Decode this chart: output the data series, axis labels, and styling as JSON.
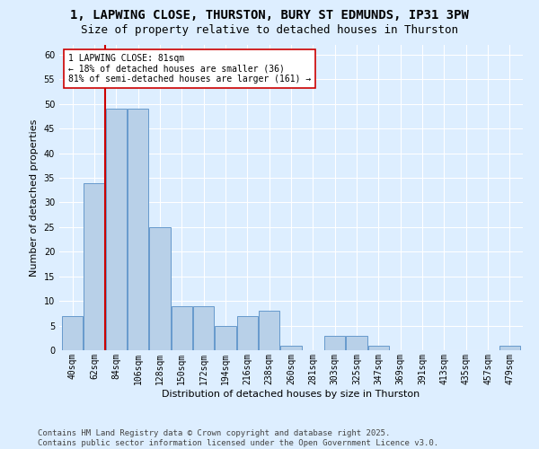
{
  "title_line1": "1, LAPWING CLOSE, THURSTON, BURY ST EDMUNDS, IP31 3PW",
  "title_line2": "Size of property relative to detached houses in Thurston",
  "xlabel": "Distribution of detached houses by size in Thurston",
  "ylabel": "Number of detached properties",
  "categories": [
    "40sqm",
    "62sqm",
    "84sqm",
    "106sqm",
    "128sqm",
    "150sqm",
    "172sqm",
    "194sqm",
    "216sqm",
    "238sqm",
    "260sqm",
    "281sqm",
    "303sqm",
    "325sqm",
    "347sqm",
    "369sqm",
    "391sqm",
    "413sqm",
    "435sqm",
    "457sqm",
    "479sqm"
  ],
  "values": [
    7,
    34,
    49,
    49,
    25,
    9,
    9,
    5,
    7,
    8,
    1,
    0,
    3,
    3,
    1,
    0,
    0,
    0,
    0,
    0,
    1
  ],
  "bar_color": "#b8d0e8",
  "bar_edge_color": "#6699cc",
  "vline_color": "#cc0000",
  "vline_x": 1.5,
  "annotation_text": "1 LAPWING CLOSE: 81sqm\n← 18% of detached houses are smaller (36)\n81% of semi-detached houses are larger (161) →",
  "annotation_box_color": "white",
  "annotation_box_edge_color": "#cc0000",
  "ylim": [
    0,
    62
  ],
  "yticks": [
    0,
    5,
    10,
    15,
    20,
    25,
    30,
    35,
    40,
    45,
    50,
    55,
    60
  ],
  "background_color": "#ddeeff",
  "plot_bg_color": "#ddeeff",
  "grid_color": "white",
  "footer_text": "Contains HM Land Registry data © Crown copyright and database right 2025.\nContains public sector information licensed under the Open Government Licence v3.0.",
  "title_fontsize": 10,
  "subtitle_fontsize": 9,
  "axis_label_fontsize": 8,
  "tick_fontsize": 7,
  "annotation_fontsize": 7,
  "footer_fontsize": 6.5
}
